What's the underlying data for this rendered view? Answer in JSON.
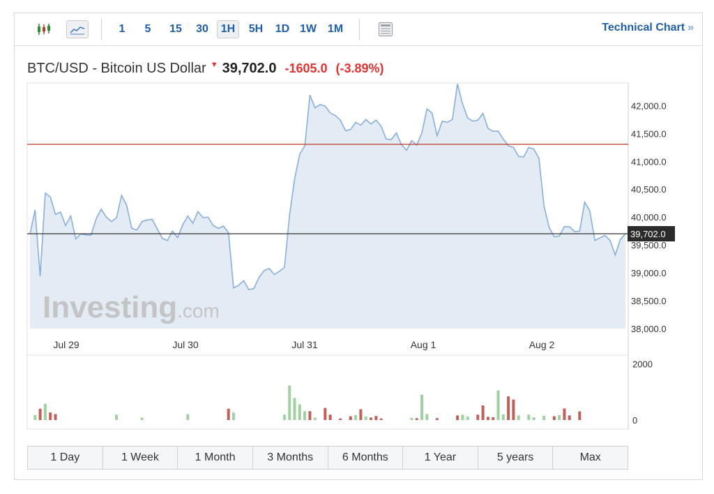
{
  "toolbar": {
    "candles_icon": "candlestick-icon",
    "line_icon": "line-chart-icon",
    "timeframes": [
      "1",
      "5",
      "15",
      "30",
      "1H",
      "5H",
      "1D",
      "1W",
      "1M"
    ],
    "active_timeframe": "1H",
    "table_icon": "table-icon",
    "technical_link": "Technical Chart",
    "technical_arrow": "»"
  },
  "header": {
    "symbol": "BTC/USD - Bitcoin US Dollar",
    "price": "39,702.0",
    "change": "-1605.0",
    "change_pct": "(-3.89%)",
    "direction_icon": "down-arrow-icon"
  },
  "colors": {
    "line": "#8aaedb",
    "area": "#e3ebf4",
    "prev_close_line": "#c0392b",
    "current_line": "#333333",
    "vol_up": "#9fd29f",
    "vol_down": "#c0605a",
    "link": "#1f5fa8",
    "negative": "#e53030"
  },
  "watermark": {
    "brand": "Investing",
    "suffix": ".com"
  },
  "chart_data": {
    "type": "area",
    "x_labels": [
      "Jul 29",
      "Jul 30",
      "Jul 31",
      "Aug 1",
      "Aug 2"
    ],
    "y_ticks": [
      "42,000.0",
      "41,500.0",
      "41,000.0",
      "40,500.0",
      "40,000.0",
      "39,500.0",
      "39,000.0",
      "38,500.0",
      "38,000.0"
    ],
    "y_tick_values": [
      42000,
      41500,
      41000,
      40500,
      40000,
      39500,
      39000,
      38500,
      38000
    ],
    "ylim": [
      38000,
      42380
    ],
    "current_price_label": "39,702.0",
    "current_price": 39702,
    "previous_close": 41307,
    "series": [
      {
        "values": [
          39700,
          40130,
          38940,
          40430,
          40360,
          40050,
          40090,
          39850,
          40020,
          39610,
          39700,
          39680,
          39680,
          39970,
          40140,
          40000,
          39920,
          39990,
          40390,
          40210,
          39800,
          39770,
          39920,
          39950,
          39960,
          39790,
          39620,
          39580,
          39750,
          39630,
          39860,
          40020,
          39890,
          40100,
          39990,
          40000,
          39850,
          39800,
          39840,
          39720,
          38730,
          38780,
          38860,
          38700,
          38720,
          38920,
          39040,
          39080,
          38970,
          39030,
          39100,
          40040,
          40690,
          41130,
          41280,
          42190,
          41960,
          42020,
          41990,
          41870,
          41820,
          41740,
          41550,
          41570,
          41700,
          41650,
          41750,
          41670,
          41740,
          41630,
          41400,
          41390,
          41510,
          41300,
          41200,
          41370,
          41290,
          41510,
          41940,
          41870,
          41460,
          41720,
          41700,
          41750,
          42390,
          42030,
          41780,
          41720,
          41740,
          41860,
          41590,
          41540,
          41540,
          41400,
          41280,
          41250,
          41090,
          41080,
          41250,
          41220,
          41060,
          40200,
          39820,
          39650,
          39660,
          39830,
          39830,
          39740,
          39750,
          40270,
          40110,
          39580,
          39630,
          39670,
          39580,
          39320,
          39600,
          39702
        ]
      }
    ]
  },
  "volume": {
    "ticks": [
      "2000",
      "0"
    ],
    "tick_values": [
      2000,
      0
    ],
    "max": 2200,
    "bars": [
      {
        "i": 1,
        "v": 180,
        "up": true
      },
      {
        "i": 2,
        "v": 420,
        "up": false
      },
      {
        "i": 3,
        "v": 600,
        "up": true
      },
      {
        "i": 4,
        "v": 280,
        "up": false
      },
      {
        "i": 5,
        "v": 220,
        "up": false
      },
      {
        "i": 17,
        "v": 200,
        "up": true
      },
      {
        "i": 22,
        "v": 90,
        "up": true
      },
      {
        "i": 31,
        "v": 220,
        "up": true
      },
      {
        "i": 39,
        "v": 420,
        "up": false
      },
      {
        "i": 40,
        "v": 280,
        "up": true
      },
      {
        "i": 50,
        "v": 200,
        "up": true
      },
      {
        "i": 51,
        "v": 1280,
        "up": true
      },
      {
        "i": 52,
        "v": 820,
        "up": true
      },
      {
        "i": 53,
        "v": 580,
        "up": true
      },
      {
        "i": 54,
        "v": 330,
        "up": true
      },
      {
        "i": 55,
        "v": 330,
        "up": false
      },
      {
        "i": 56,
        "v": 90,
        "up": true
      },
      {
        "i": 58,
        "v": 450,
        "up": false
      },
      {
        "i": 59,
        "v": 200,
        "up": false
      },
      {
        "i": 61,
        "v": 60,
        "up": false
      },
      {
        "i": 63,
        "v": 140,
        "up": false
      },
      {
        "i": 64,
        "v": 180,
        "up": true
      },
      {
        "i": 65,
        "v": 400,
        "up": false
      },
      {
        "i": 66,
        "v": 130,
        "up": true
      },
      {
        "i": 67,
        "v": 90,
        "up": false
      },
      {
        "i": 68,
        "v": 150,
        "up": false
      },
      {
        "i": 69,
        "v": 60,
        "up": false
      },
      {
        "i": 75,
        "v": 80,
        "up": true
      },
      {
        "i": 76,
        "v": 70,
        "up": false
      },
      {
        "i": 77,
        "v": 940,
        "up": true
      },
      {
        "i": 78,
        "v": 220,
        "up": true
      },
      {
        "i": 80,
        "v": 70,
        "up": false
      },
      {
        "i": 84,
        "v": 170,
        "up": false
      },
      {
        "i": 85,
        "v": 200,
        "up": true
      },
      {
        "i": 86,
        "v": 130,
        "up": true
      },
      {
        "i": 88,
        "v": 200,
        "up": false
      },
      {
        "i": 89,
        "v": 540,
        "up": false
      },
      {
        "i": 90,
        "v": 120,
        "up": false
      },
      {
        "i": 91,
        "v": 100,
        "up": false
      },
      {
        "i": 92,
        "v": 1100,
        "up": true
      },
      {
        "i": 93,
        "v": 210,
        "up": true
      },
      {
        "i": 94,
        "v": 880,
        "up": false
      },
      {
        "i": 95,
        "v": 760,
        "up": false
      },
      {
        "i": 96,
        "v": 170,
        "up": true
      },
      {
        "i": 98,
        "v": 200,
        "up": true
      },
      {
        "i": 99,
        "v": 100,
        "up": true
      },
      {
        "i": 101,
        "v": 160,
        "up": true
      },
      {
        "i": 103,
        "v": 140,
        "up": false
      },
      {
        "i": 104,
        "v": 180,
        "up": true
      },
      {
        "i": 105,
        "v": 430,
        "up": false
      },
      {
        "i": 106,
        "v": 170,
        "up": false
      },
      {
        "i": 108,
        "v": 320,
        "up": false
      }
    ]
  },
  "ranges": [
    "1 Day",
    "1 Week",
    "1 Month",
    "3 Months",
    "6 Months",
    "1 Year",
    "5 years",
    "Max"
  ]
}
